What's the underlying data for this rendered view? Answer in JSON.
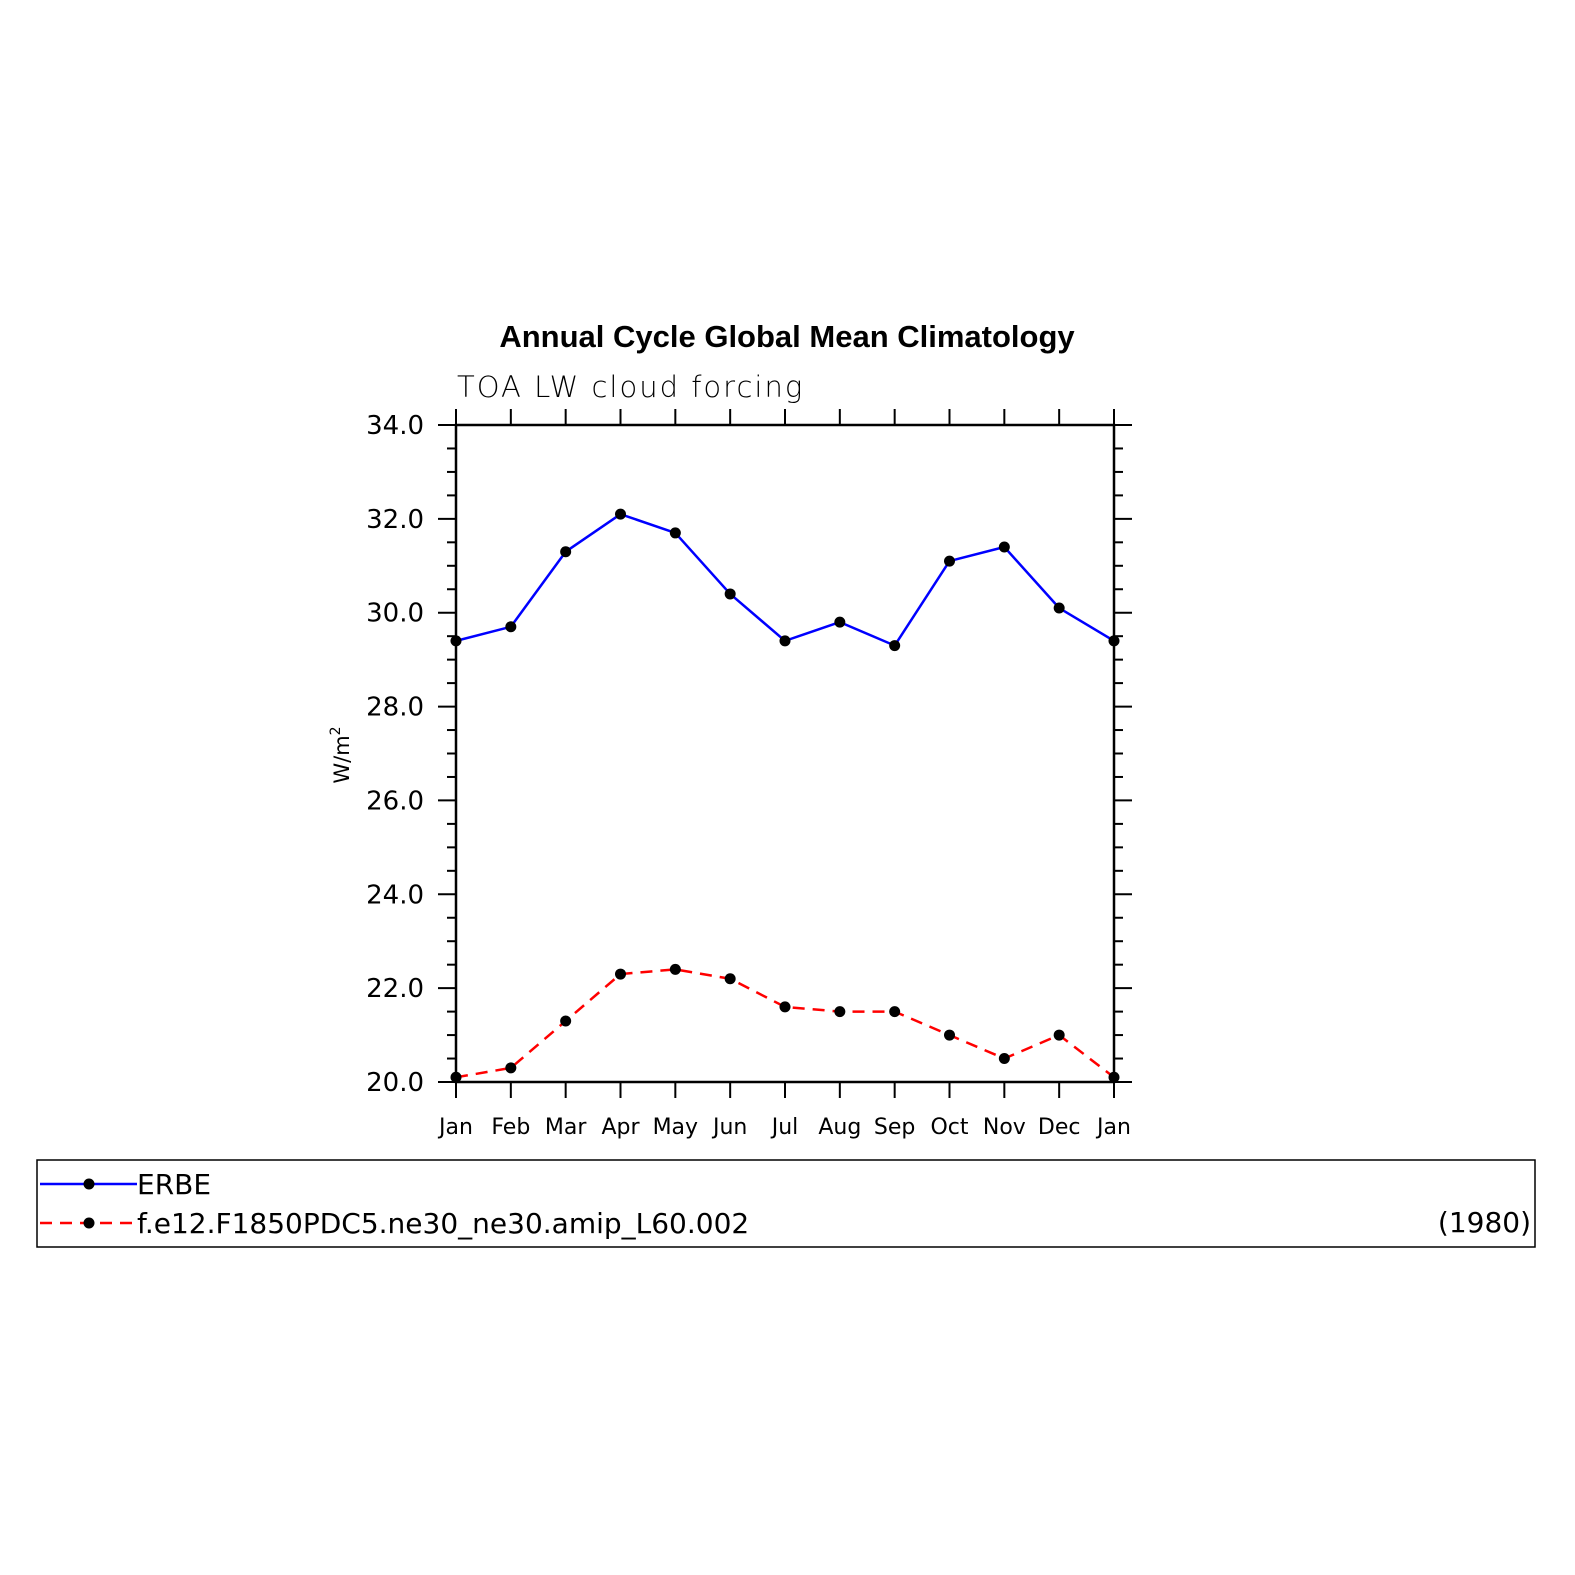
{
  "chart_data": {
    "type": "line",
    "title": "Annual Cycle Global Mean Climatology",
    "subtitle": "TOA LW cloud forcing",
    "ylabel": "W/m",
    "ylabel_superscript": "2",
    "ylim": [
      20.0,
      34.0
    ],
    "yticks": [
      "20.0",
      "22.0",
      "24.0",
      "26.0",
      "28.0",
      "30.0",
      "32.0",
      "34.0"
    ],
    "categories": [
      "Jan",
      "Feb",
      "Mar",
      "Apr",
      "May",
      "Jun",
      "Jul",
      "Aug",
      "Sep",
      "Oct",
      "Nov",
      "Dec",
      "Jan"
    ],
    "grid": false,
    "legend_placement": "bottom",
    "series": [
      {
        "name": "ERBE",
        "color": "#0000ff",
        "line_style": "solid",
        "marker": "filled-circle",
        "values": [
          29.4,
          29.7,
          31.3,
          32.1,
          31.7,
          30.4,
          29.4,
          29.8,
          29.3,
          31.1,
          31.4,
          30.1,
          29.4
        ]
      },
      {
        "name": "f.e12.F1850PDC5.ne30_ne30.amip_L60.002",
        "color": "#ff0000",
        "line_style": "dashed",
        "marker": "filled-circle",
        "values": [
          20.1,
          20.3,
          21.3,
          22.3,
          22.4,
          22.2,
          21.6,
          21.5,
          21.5,
          21.0,
          20.5,
          21.0,
          20.1
        ]
      }
    ],
    "legend_note": "(1980)"
  }
}
